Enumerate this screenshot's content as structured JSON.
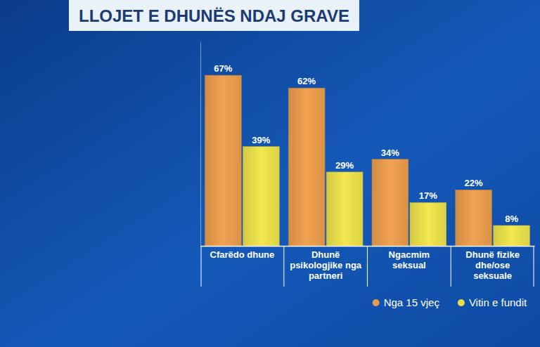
{
  "chart_data": {
    "type": "bar",
    "title": "LLOJET E DHUNËS NDAJ GRAVE",
    "categories": [
      "Cfarëdo dhune",
      "Dhunë psikologjike nga partneri",
      "Ngacmim seksual",
      "Dhunë fizike dhe/ose seksuale"
    ],
    "series": [
      {
        "name": "Nga 15 vjeç",
        "color": "#e59a4c",
        "values": [
          67,
          62,
          34,
          22
        ],
        "value_labels": [
          "67%",
          "62%",
          "34%",
          "22%"
        ]
      },
      {
        "name": "Vitin e fundit",
        "color": "#e6dc4a",
        "values": [
          39,
          29,
          17,
          8
        ],
        "value_labels": [
          "39%",
          "29%",
          "17%",
          "8%"
        ]
      }
    ],
    "ylim": [
      0,
      80
    ],
    "grid": false,
    "legend": "bottom-right",
    "data_labels": true,
    "tick_labels": "x"
  }
}
